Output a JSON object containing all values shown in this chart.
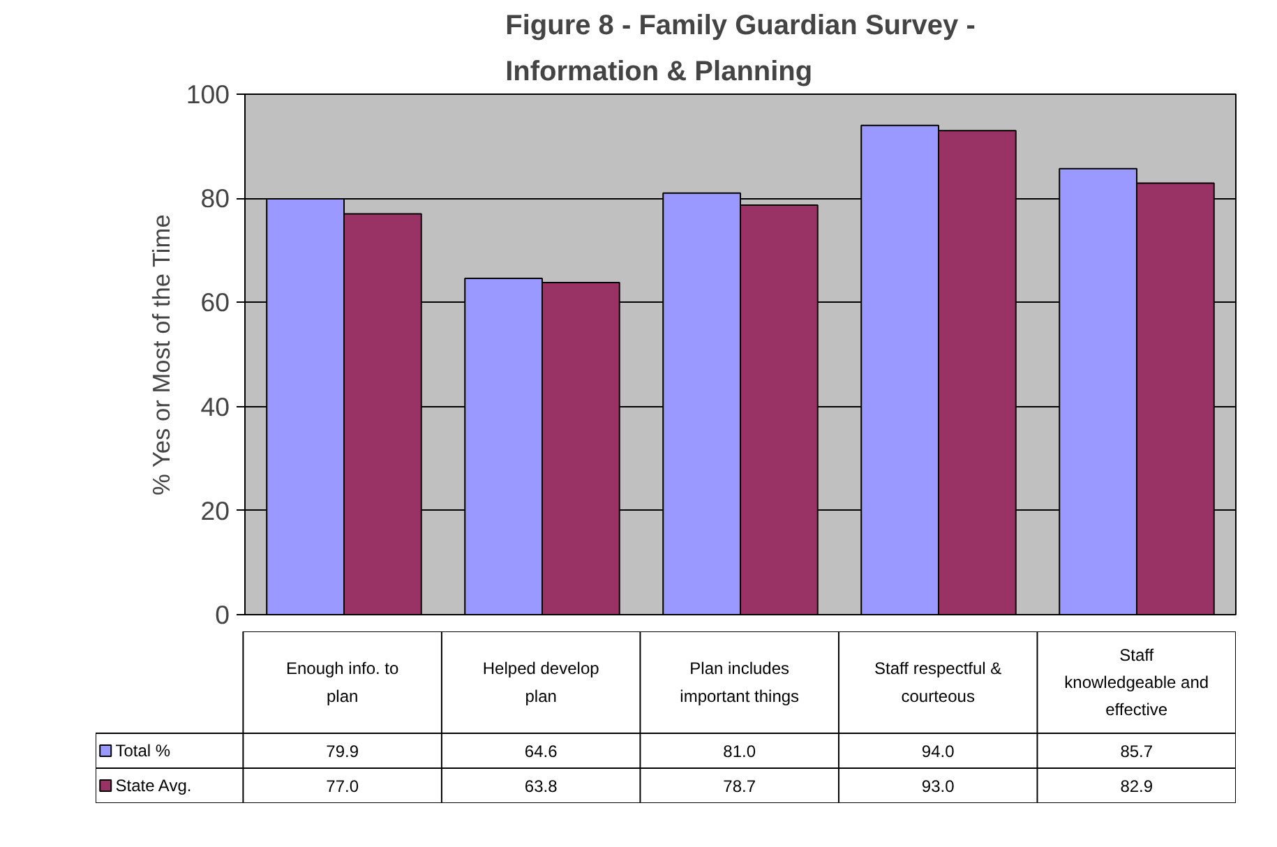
{
  "chart_data": {
    "type": "bar",
    "title": "Figure 8 - Family Guardian Survey - Information & Planning",
    "ylabel": "% Yes or Most of the Time",
    "categories": [
      "Enough info. to plan",
      "Helped develop plan",
      "Plan includes important things",
      "Staff respectful & courteous",
      "Staff knowledgeable and effective"
    ],
    "series": [
      {
        "name": "Total %",
        "color": "#9999ff",
        "values": [
          79.9,
          64.6,
          81.0,
          94.0,
          85.7
        ],
        "value_labels": [
          "79.9",
          "64.6",
          "81.0",
          "94.0",
          "85.7"
        ]
      },
      {
        "name": "State Avg.",
        "color": "#993366",
        "values": [
          77.0,
          63.8,
          78.7,
          93.0,
          82.9
        ],
        "value_labels": [
          "77.0",
          "63.8",
          "78.7",
          "93.0",
          "82.9"
        ]
      }
    ],
    "ylim": [
      0,
      100
    ],
    "yticks": [
      0,
      20,
      40,
      60,
      80,
      100
    ],
    "grid": "y",
    "legend": "bottom"
  }
}
